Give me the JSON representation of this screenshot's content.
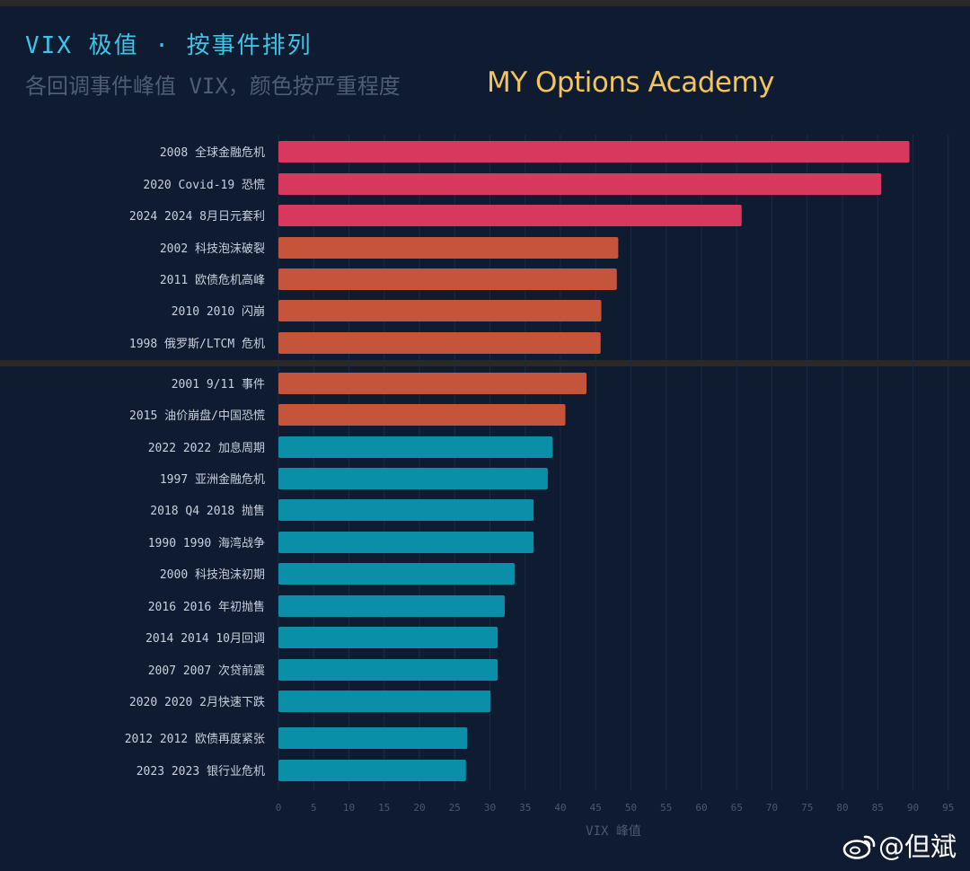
{
  "header": {
    "title": "VIX 极值 · 按事件排列",
    "subtitle": "各回调事件峰值 VIX，颜色按严重程度",
    "watermark": "MY Options Academy"
  },
  "credit": {
    "text": "@但斌"
  },
  "colors": {
    "severe": "#d7385d",
    "high": "#c4553a",
    "moderate": "#0b8fa8",
    "background": "#0f1b31"
  },
  "chart_data": {
    "type": "bar",
    "orientation": "horizontal",
    "title": "VIX 极值 · 按事件排列",
    "subtitle": "各回调事件峰值 VIX，颜色按严重程度",
    "xlabel": "VIX 峰值",
    "ylabel": "",
    "xlim": [
      0,
      95
    ],
    "xticks": [
      "0",
      "5",
      "10",
      "15",
      "20",
      "25",
      "30",
      "35",
      "40",
      "45",
      "50",
      "55",
      "60",
      "65",
      "70",
      "75",
      "80",
      "85",
      "90",
      "95"
    ],
    "grid": "vertical",
    "categories": [
      "2008 全球金融危机",
      "2020 Covid-19 恐慌",
      "2024 2024 8月日元套利",
      "2002 科技泡沫破裂",
      "2011 欧债危机高峰",
      "2010 2010 闪崩",
      "1998 俄罗斯/LTCM 危机",
      "2001 9/11 事件",
      "2015 油价崩盘/中国恐慌",
      "2022 2022 加息周期",
      "1997 亚洲金融危机",
      "2018 Q4 2018 抛售",
      "1990 1990 海湾战争",
      "2000 科技泡沫初期",
      "2016 2016 年初抛售",
      "2014 2014 10月回调",
      "2007 2007 次贷前震",
      "2020 2020 2月快速下跌",
      "2012 2012 欧债再度紧张",
      "2023 2023 银行业危机"
    ],
    "values": [
      89.5,
      85.5,
      65.7,
      48.2,
      48.0,
      45.8,
      45.7,
      43.7,
      40.7,
      38.9,
      38.2,
      36.2,
      36.2,
      33.5,
      32.1,
      31.1,
      31.1,
      30.1,
      26.8,
      26.6
    ],
    "severity": [
      "severe",
      "severe",
      "severe",
      "high",
      "high",
      "high",
      "high",
      "high",
      "high",
      "moderate",
      "moderate",
      "moderate",
      "moderate",
      "moderate",
      "moderate",
      "moderate",
      "moderate",
      "moderate",
      "moderate",
      "moderate"
    ]
  }
}
